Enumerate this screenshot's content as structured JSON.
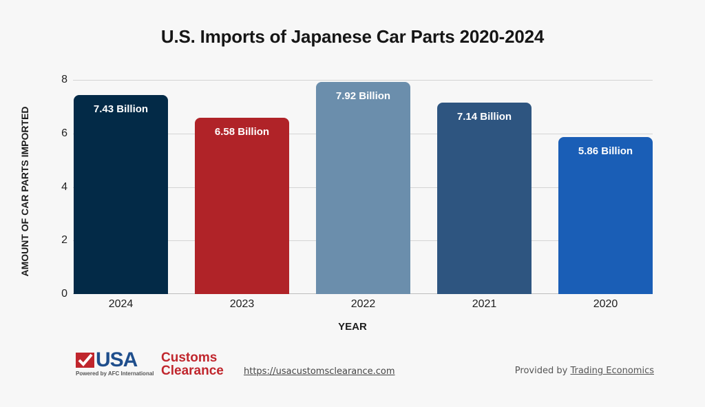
{
  "title": "U.S. Imports of Japanese Car Parts 2020-2024",
  "ylabel": "AMOUNT OF CAR PARTS IMPORTED",
  "xlabel": "YEAR",
  "yticks": [
    "0",
    "2",
    "4",
    "6",
    "8"
  ],
  "bars": [
    {
      "year": "2024",
      "value": 7.43,
      "label": "7.43 Billion",
      "color": "#032a47"
    },
    {
      "year": "2023",
      "value": 6.58,
      "label": "6.58 Billion",
      "color": "#b02328"
    },
    {
      "year": "2022",
      "value": 7.92,
      "label": "7.92 Billion",
      "color": "#6b8eac"
    },
    {
      "year": "2021",
      "value": 7.14,
      "label": "7.14 Billion",
      "color": "#2e5580"
    },
    {
      "year": "2020",
      "value": 5.86,
      "label": "5.86 Billion",
      "color": "#1a5eb6"
    }
  ],
  "footer": {
    "logo": {
      "usa": "USA",
      "customs": "Customs",
      "clearance": "Clearance",
      "powered": "Powered by AFC International"
    },
    "url": "https://usacustomsclearance.com",
    "provided_prefix": "Provided by",
    "provided_source": "Trading Economics"
  },
  "chart_data": {
    "type": "bar",
    "title": "U.S. Imports of Japanese Car Parts 2020-2024",
    "categories": [
      "2024",
      "2023",
      "2022",
      "2021",
      "2020"
    ],
    "values": [
      7.43,
      6.58,
      7.92,
      7.14,
      5.86
    ],
    "data_labels": [
      "7.43 Billion",
      "6.58 Billion",
      "7.92 Billion",
      "7.14 Billion",
      "5.86 Billion"
    ],
    "xlabel": "YEAR",
    "ylabel": "AMOUNT OF CAR PARTS IMPORTED",
    "ylim": [
      0,
      8
    ],
    "yticks": [
      0,
      2,
      4,
      6,
      8
    ],
    "grid": true,
    "legend": null,
    "source": "Trading Economics"
  }
}
